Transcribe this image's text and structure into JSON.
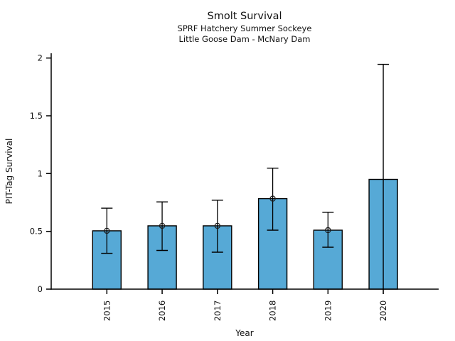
{
  "chart_data": {
    "type": "bar",
    "title": "Smolt Survival",
    "subtitle_line1": "SPRF Hatchery Summer Sockeye",
    "subtitle_line2": "Little Goose Dam - McNary Dam",
    "xlabel": "Year",
    "ylabel": "PIT-Tag Survival",
    "categories": [
      "2015",
      "2016",
      "2017",
      "2018",
      "2019",
      "2020"
    ],
    "values": [
      0.505,
      0.548,
      0.548,
      0.783,
      0.51,
      0.95
    ],
    "error_low": [
      0.31,
      0.335,
      0.32,
      0.51,
      0.363,
      0.0
    ],
    "error_high": [
      0.7,
      0.755,
      0.77,
      1.047,
      0.665,
      1.945
    ],
    "point_markers": [
      true,
      true,
      true,
      true,
      true,
      false
    ],
    "marker_style": "open-circle",
    "ylim": [
      0,
      2.04
    ],
    "yticks": [
      0,
      0.5,
      1,
      1.5,
      2
    ],
    "ytick_labels": [
      "0",
      "0.5",
      "1",
      "1.5",
      "2"
    ],
    "xtick_rotation_deg": 90,
    "bar_color": "#56a9d6",
    "bar_edge_color": "#000000",
    "errorbar_color": "#000000",
    "axis_color": "#000000",
    "grid": false,
    "legend": "none"
  }
}
